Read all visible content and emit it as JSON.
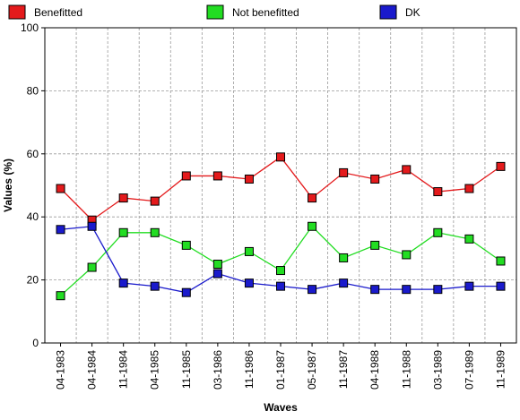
{
  "chart_data": {
    "type": "line",
    "title": "",
    "xlabel": "Waves",
    "ylabel": "Values (%)",
    "ylim": [
      0,
      100
    ],
    "yticks": [
      0,
      20,
      40,
      60,
      80,
      100
    ],
    "grid": true,
    "legend_placement": "top",
    "categories": [
      "04-1983",
      "04-1984",
      "11-1984",
      "04-1985",
      "11-1985",
      "03-1986",
      "11-1986",
      "01-1987",
      "05-1987",
      "11-1987",
      "04-1988",
      "11-1988",
      "03-1989",
      "07-1989",
      "11-1989"
    ],
    "series": [
      {
        "name": "Benefitted",
        "color": "#e41a1c",
        "values": [
          49,
          39,
          46,
          45,
          53,
          53,
          52,
          59,
          46,
          54,
          52,
          55,
          48,
          49,
          56
        ]
      },
      {
        "name": "Not benefitted",
        "color": "#22dd22",
        "values": [
          15,
          24,
          35,
          35,
          31,
          25,
          29,
          23,
          37,
          27,
          31,
          28,
          35,
          33,
          26
        ]
      },
      {
        "name": "DK",
        "color": "#1a1acc",
        "values": [
          36,
          37,
          19,
          18,
          16,
          22,
          19,
          18,
          17,
          19,
          17,
          17,
          17,
          18,
          18
        ]
      }
    ]
  }
}
